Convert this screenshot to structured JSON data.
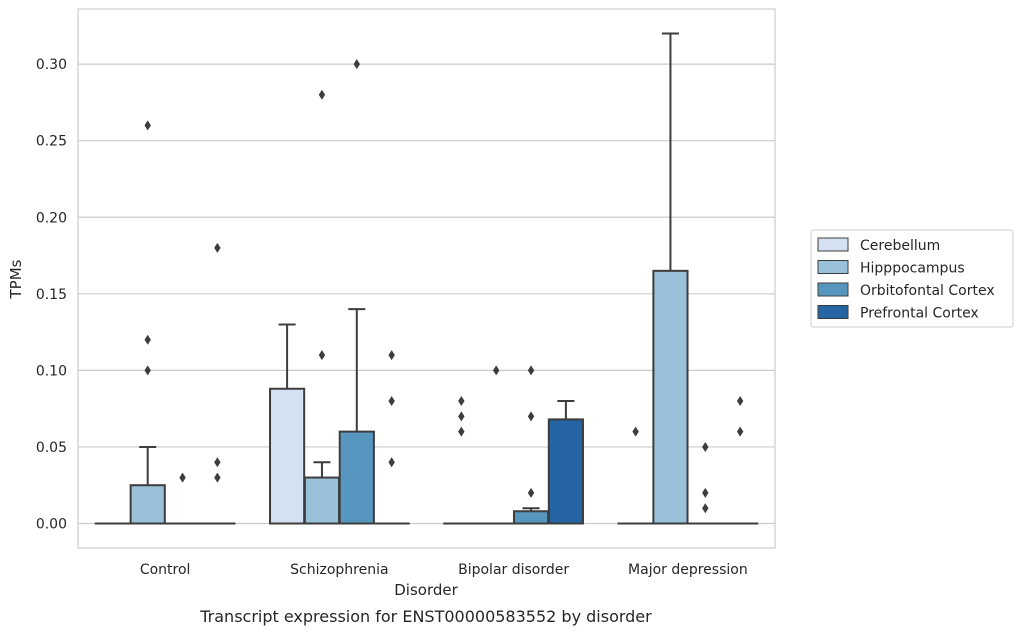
{
  "chart_data": {
    "type": "box",
    "title": "",
    "caption": "Transcript expression for ENST00000583552 by disorder",
    "xlabel": "Disorder",
    "ylabel": "TPMs",
    "ylim": [
      -0.016,
      0.336
    ],
    "yticks": [
      0.0,
      0.05,
      0.1,
      0.15,
      0.2,
      0.25,
      0.3
    ],
    "ytick_labels": [
      "0.00",
      "0.05",
      "0.10",
      "0.15",
      "0.20",
      "0.25",
      "0.30"
    ],
    "grid": "horizontal",
    "legend_position": "right",
    "categories": [
      "Control",
      "Schizophrenia",
      "Bipolar disorder",
      "Major depression"
    ],
    "series": [
      {
        "name": "Cerebellum",
        "color": "#d3e1f0",
        "boxes": [
          {
            "q1": 0,
            "median": 0,
            "q3": 0,
            "whisker_low": 0,
            "whisker_high": 0,
            "outliers": []
          },
          {
            "q1": 0,
            "median": 0,
            "q3": 0.088,
            "whisker_low": 0,
            "whisker_high": 0.13,
            "outliers": []
          },
          {
            "q1": 0,
            "median": 0,
            "q3": 0,
            "whisker_low": 0,
            "whisker_high": 0,
            "outliers": [
              0.06,
              0.07,
              0.08
            ]
          },
          {
            "q1": 0,
            "median": 0,
            "q3": 0,
            "whisker_low": 0,
            "whisker_high": 0,
            "outliers": [
              0.06
            ]
          }
        ]
      },
      {
        "name": "Hipppocampus",
        "color": "#9ac1da",
        "boxes": [
          {
            "q1": 0,
            "median": 0,
            "q3": 0.025,
            "whisker_low": 0,
            "whisker_high": 0.05,
            "outliers": [
              0.1,
              0.12,
              0.26
            ]
          },
          {
            "q1": 0,
            "median": 0,
            "q3": 0.03,
            "whisker_low": 0,
            "whisker_high": 0.04,
            "outliers": [
              0.11,
              0.28
            ]
          },
          {
            "q1": 0,
            "median": 0,
            "q3": 0,
            "whisker_low": 0,
            "whisker_high": 0,
            "outliers": [
              0.1
            ]
          },
          {
            "q1": 0,
            "median": 0,
            "q3": 0.165,
            "whisker_low": 0,
            "whisker_high": 0.32,
            "outliers": []
          }
        ]
      },
      {
        "name": "Orbitofontal Cortex",
        "color": "#5796bf",
        "boxes": [
          {
            "q1": 0,
            "median": 0,
            "q3": 0,
            "whisker_low": 0,
            "whisker_high": 0,
            "outliers": [
              0.03
            ]
          },
          {
            "q1": 0,
            "median": 0,
            "q3": 0.06,
            "whisker_low": 0,
            "whisker_high": 0.14,
            "outliers": [
              0.3
            ]
          },
          {
            "q1": 0,
            "median": 0,
            "q3": 0.008,
            "whisker_low": 0,
            "whisker_high": 0.01,
            "outliers": [
              0.02,
              0.07,
              0.1
            ]
          },
          {
            "q1": 0,
            "median": 0,
            "q3": 0,
            "whisker_low": 0,
            "whisker_high": 0,
            "outliers": [
              0.01,
              0.02,
              0.05
            ]
          }
        ]
      },
      {
        "name": "Prefrontal Cortex",
        "color": "#2565a3",
        "boxes": [
          {
            "q1": 0,
            "median": 0,
            "q3": 0,
            "whisker_low": 0,
            "whisker_high": 0,
            "outliers": [
              0.03,
              0.04,
              0.18
            ]
          },
          {
            "q1": 0,
            "median": 0,
            "q3": 0,
            "whisker_low": 0,
            "whisker_high": 0,
            "outliers": [
              0.04,
              0.08,
              0.11
            ]
          },
          {
            "q1": 0,
            "median": 0,
            "q3": 0.068,
            "whisker_low": 0,
            "whisker_high": 0.08,
            "outliers": []
          },
          {
            "q1": 0,
            "median": 0,
            "q3": 0,
            "whisker_low": 0,
            "whisker_high": 0,
            "outliers": [
              0.06,
              0.08
            ]
          }
        ]
      }
    ]
  }
}
